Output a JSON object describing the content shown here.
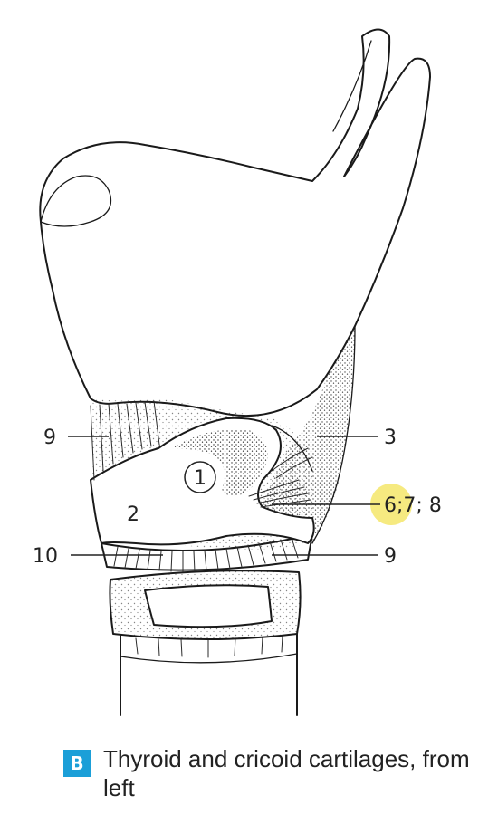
{
  "figure": {
    "labels": {
      "l9_upper": "9",
      "l3": "3",
      "l1": "1",
      "l2": "2",
      "l6": "6",
      "l678_rest": ";7; 8",
      "l10": "10",
      "l9_lower": "9"
    },
    "highlight_color": "#f5e66a"
  },
  "caption": {
    "badge": "B",
    "text": "Thyroid and cricoid cartilages, from left",
    "badge_color": "#1b9fd8"
  }
}
